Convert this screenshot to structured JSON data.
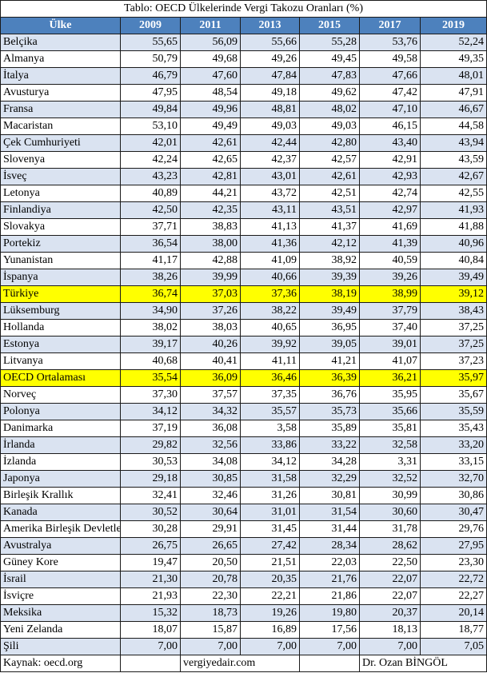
{
  "title": "Tablo: OECD Ülkelerinde Vergi Takozu Oranları (%)",
  "columns": [
    "Ülke",
    "2009",
    "2011",
    "2013",
    "2015",
    "2017",
    "2019"
  ],
  "rows": [
    {
      "country": "Belçika",
      "values": [
        "55,65",
        "56,09",
        "55,66",
        "55,28",
        "53,76",
        "52,24"
      ]
    },
    {
      "country": "Almanya",
      "values": [
        "50,79",
        "49,68",
        "49,26",
        "49,45",
        "49,58",
        "49,35"
      ]
    },
    {
      "country": "İtalya",
      "values": [
        "46,79",
        "47,60",
        "47,84",
        "47,83",
        "47,66",
        "48,01"
      ]
    },
    {
      "country": "Avusturya",
      "values": [
        "47,95",
        "48,54",
        "49,18",
        "49,62",
        "47,42",
        "47,91"
      ]
    },
    {
      "country": "Fransa",
      "values": [
        "49,84",
        "49,96",
        "48,81",
        "48,02",
        "47,10",
        "46,67"
      ]
    },
    {
      "country": "Macaristan",
      "values": [
        "53,10",
        "49,49",
        "49,03",
        "49,03",
        "46,15",
        "44,58"
      ]
    },
    {
      "country": "Çek Cumhuriyeti",
      "values": [
        "42,01",
        "42,61",
        "42,44",
        "42,80",
        "43,40",
        "43,94"
      ]
    },
    {
      "country": "Slovenya",
      "values": [
        "42,24",
        "42,65",
        "42,37",
        "42,57",
        "42,91",
        "43,59"
      ]
    },
    {
      "country": "İsveç",
      "values": [
        "43,23",
        "42,81",
        "43,01",
        "42,61",
        "42,93",
        "42,67"
      ]
    },
    {
      "country": "Letonya",
      "values": [
        "40,89",
        "44,21",
        "43,72",
        "42,51",
        "42,74",
        "42,55"
      ]
    },
    {
      "country": "Finlandiya",
      "values": [
        "42,50",
        "42,35",
        "43,11",
        "43,51",
        "42,97",
        "41,93"
      ]
    },
    {
      "country": "Slovakya",
      "values": [
        "37,71",
        "38,83",
        "41,13",
        "41,37",
        "41,69",
        "41,88"
      ]
    },
    {
      "country": "Portekiz",
      "values": [
        "36,54",
        "38,00",
        "41,36",
        "42,12",
        "41,39",
        "40,96"
      ]
    },
    {
      "country": "Yunanistan",
      "values": [
        "41,17",
        "42,88",
        "41,09",
        "38,92",
        "40,59",
        "40,84"
      ]
    },
    {
      "country": "İspanya",
      "values": [
        "38,26",
        "39,99",
        "40,66",
        "39,39",
        "39,26",
        "39,49"
      ]
    },
    {
      "country": "Türkiye",
      "values": [
        "36,74",
        "37,03",
        "37,36",
        "38,19",
        "38,99",
        "39,12"
      ],
      "highlight": true
    },
    {
      "country": "Lüksemburg",
      "values": [
        "34,90",
        "37,26",
        "38,22",
        "39,49",
        "37,79",
        "38,43"
      ]
    },
    {
      "country": "Hollanda",
      "values": [
        "38,02",
        "38,03",
        "40,65",
        "36,95",
        "37,40",
        "37,25"
      ]
    },
    {
      "country": "Estonya",
      "values": [
        "39,17",
        "40,26",
        "39,92",
        "39,05",
        "39,01",
        "37,25"
      ]
    },
    {
      "country": "Litvanya",
      "values": [
        "40,68",
        "40,41",
        "41,11",
        "41,21",
        "41,07",
        "37,23"
      ]
    },
    {
      "country": "OECD Ortalaması",
      "values": [
        "35,54",
        "36,09",
        "36,46",
        "36,39",
        "36,21",
        "35,97"
      ],
      "highlight": true
    },
    {
      "country": "Norveç",
      "values": [
        "37,30",
        "37,57",
        "37,35",
        "36,76",
        "35,95",
        "35,67"
      ]
    },
    {
      "country": "Polonya",
      "values": [
        "34,12",
        "34,32",
        "35,57",
        "35,73",
        "35,66",
        "35,59"
      ]
    },
    {
      "country": "Danimarka",
      "values": [
        "37,19",
        "36,08",
        "3,58",
        "35,89",
        "35,81",
        "35,43"
      ]
    },
    {
      "country": "İrlanda",
      "values": [
        "29,82",
        "32,56",
        "33,86",
        "33,22",
        "32,58",
        "33,20"
      ]
    },
    {
      "country": "İzlanda",
      "values": [
        "30,53",
        "34,08",
        "34,12",
        "34,28",
        "3,31",
        "33,15"
      ]
    },
    {
      "country": "Japonya",
      "values": [
        "29,18",
        "30,85",
        "31,58",
        "32,29",
        "32,52",
        "32,70"
      ]
    },
    {
      "country": "Birleşik Krallık",
      "values": [
        "32,41",
        "32,46",
        "31,26",
        "30,81",
        "30,99",
        "30,86"
      ]
    },
    {
      "country": "Kanada",
      "values": [
        "30,52",
        "30,64",
        "31,01",
        "31,54",
        "30,60",
        "30,47"
      ]
    },
    {
      "country": "Amerika Birleşik Devletleri",
      "values": [
        "30,28",
        "29,91",
        "31,45",
        "31,44",
        "31,78",
        "29,76"
      ]
    },
    {
      "country": "Avustralya",
      "values": [
        "26,75",
        "26,65",
        "27,42",
        "28,34",
        "28,62",
        "27,95"
      ]
    },
    {
      "country": "Güney Kore",
      "values": [
        "19,47",
        "20,50",
        "21,51",
        "22,03",
        "22,50",
        "23,30"
      ]
    },
    {
      "country": "İsrail",
      "values": [
        "21,30",
        "20,78",
        "20,35",
        "21,76",
        "22,07",
        "22,72"
      ]
    },
    {
      "country": "İsviçre",
      "values": [
        "21,93",
        "22,30",
        "22,21",
        "21,86",
        "22,07",
        "22,27"
      ]
    },
    {
      "country": "Meksika",
      "values": [
        "15,32",
        "18,73",
        "19,26",
        "19,80",
        "20,37",
        "20,14"
      ]
    },
    {
      "country": "Yeni Zelanda",
      "values": [
        "18,07",
        "15,87",
        "16,89",
        "17,56",
        "18,13",
        "18,77"
      ]
    },
    {
      "country": "Şili",
      "values": [
        "7,00",
        "7,00",
        "7,00",
        "7,00",
        "7,00",
        "7,05"
      ]
    }
  ],
  "footer": {
    "source": "Kaynak: oecd.org",
    "site": "vergiyedair.com",
    "author": "Dr. Ozan BİNGÖL"
  },
  "colors": {
    "header": "#4d81bd",
    "band": "#dae3f1",
    "highlight": "#ffff00"
  }
}
